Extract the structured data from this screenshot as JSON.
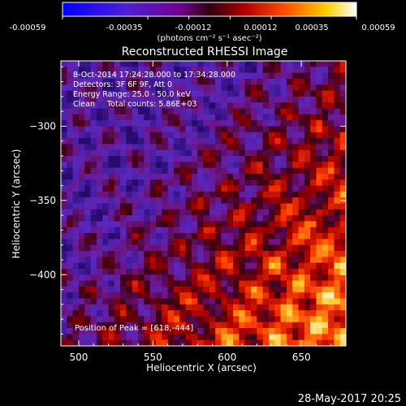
{
  "colorbar": {
    "ticks": [
      "-0.00059",
      "-0.00035",
      "-0.00012",
      "0.00012",
      "0.00035",
      "0.00059"
    ],
    "unit_label": "(photons cm⁻² s⁻¹ asec⁻²)",
    "range": [
      -0.00059,
      0.00059
    ],
    "colormap": "blue-purple-red-yellow-white"
  },
  "chart_data": {
    "type": "heatmap",
    "title": "Reconstructed RHESSI Image",
    "xlabel": "Heliocentric X (arcsec)",
    "ylabel": "Heliocentric Y (arcsec)",
    "xlim": [
      488,
      680
    ],
    "ylim": [
      -448,
      -256
    ],
    "xticks": [
      500,
      550,
      600,
      650
    ],
    "yticks": [
      -300,
      -350,
      -400
    ],
    "annotations": [
      "8-Oct-2014 17:24:28.000 to 17:34:28.000",
      "Detectors: 3F 6F 9F, Att 0",
      "Energy Range: 25.0 - 50.0 keV",
      "Clean     Total counts: 5.86E+03"
    ],
    "peak_label": "Position of Peak = [618,-444]",
    "peak": [
      618,
      -444
    ],
    "grid": false
  },
  "footer": {
    "timestamp": "28-May-2017 20:25"
  }
}
